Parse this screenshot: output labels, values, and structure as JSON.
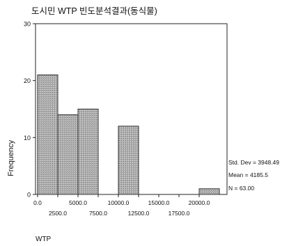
{
  "chart_data": {
    "type": "bar",
    "title": "도시민 WTP 빈도분석결과(동식물)",
    "xlabel": "WTP",
    "ylabel": "Frequency",
    "bin_width": 2500,
    "bins": [
      {
        "start": 0,
        "end": 2500,
        "count": 21
      },
      {
        "start": 2500,
        "end": 5000,
        "count": 14
      },
      {
        "start": 5000,
        "end": 7500,
        "count": 15
      },
      {
        "start": 10000,
        "end": 12500,
        "count": 12
      },
      {
        "start": 20000,
        "end": 22500,
        "count": 1
      }
    ],
    "xlim": [
      0,
      22500
    ],
    "ylim": [
      0,
      30
    ],
    "x_ticks_upper": [
      "0.0",
      "5000.0",
      "10000.0",
      "15000.0",
      "20000.0"
    ],
    "x_ticks_lower": [
      "2500.0",
      "7500.0",
      "12500.0",
      "17500.0"
    ],
    "y_ticks": [
      "0",
      "10",
      "20",
      "30"
    ],
    "stats": {
      "std_dev": "Std. Dev = 3948.49",
      "mean": "Mean = 4185.5",
      "n": "N = 63.00"
    },
    "grid": false,
    "bar_color": "#a9a9a9"
  }
}
